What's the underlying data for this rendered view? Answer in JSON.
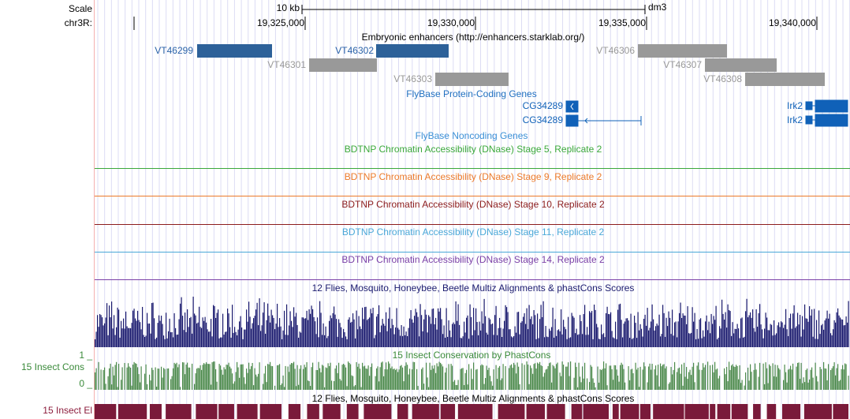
{
  "ruler": {
    "scale": "Scale",
    "scale_bar": "10 kb",
    "assembly": "dm3",
    "chrom": "chr3R:",
    "ticks": [
      "19,325,000",
      "19,330,000",
      "19,335,000",
      "19,340,000"
    ]
  },
  "enhancers": {
    "title": "Embryonic enhancers (http://enhancers.starklab.org/)",
    "items": [
      "VT46299",
      "VT46302",
      "VT46301",
      "VT46306",
      "VT46307",
      "VT46303",
      "VT46308"
    ]
  },
  "genes": {
    "title": "FlyBase Protein-Coding Genes",
    "items": [
      "CG34289",
      "CG34289",
      "Irk2",
      "Irk2"
    ]
  },
  "noncoding": {
    "title": "FlyBase Noncoding Genes"
  },
  "dnase": [
    "BDTNP Chromatin Accessibility (DNase) Stage 5, Replicate 2",
    "BDTNP Chromatin Accessibility (DNase) Stage 9, Replicate 2",
    "BDTNP Chromatin Accessibility (DNase) Stage 10, Replicate 2",
    "BDTNP Chromatin Accessibility (DNase) Stage 11, Replicate 2",
    "BDTNP Chromatin Accessibility (DNase) Stage 14, Replicate 2"
  ],
  "conservation": {
    "title": "12 Flies, Mosquito, Honeybee, Beetle Multiz Alignments & phastCons Scores",
    "phastcons_title": "15 Insect Conservation by PhastCons",
    "label": "15 Insect Cons",
    "max": "1 _",
    "min": "0 _",
    "elements_title": "12 Flies, Mosquito, Honeybee, Beetle Multiz Alignments & phastCons Scores",
    "elements_label": "15 Insect El"
  }
}
